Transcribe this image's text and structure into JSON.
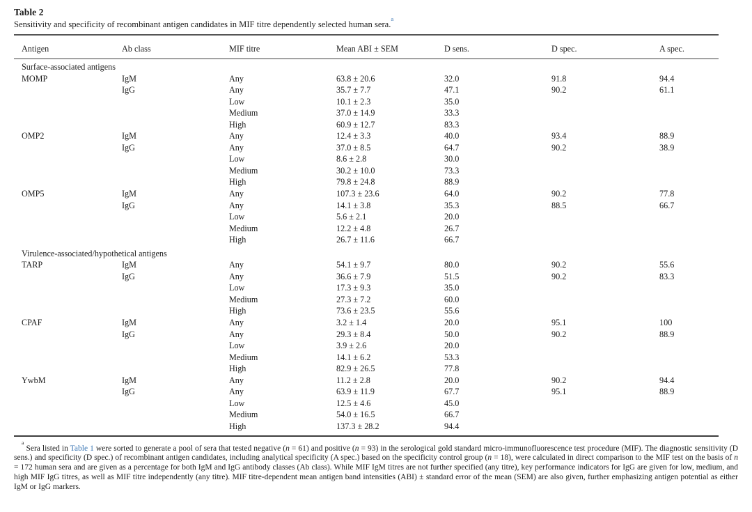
{
  "page": {
    "background": "#ffffff",
    "text_color": "#1c1c1c",
    "link_color": "#3c77b5"
  },
  "title": "Table 2",
  "caption": {
    "text": "Sensitivity and specificity of recombinant antigen candidates in MIF titre dependently selected human sera.",
    "footnote_marker": "a"
  },
  "table": {
    "columns": [
      "Antigen",
      "Ab class",
      "MIF titre",
      "Mean ABI ± SEM",
      "D sens.",
      "D spec.",
      "A spec."
    ],
    "rows": [
      {
        "type": "section",
        "label": "Surface-associated antigens"
      },
      {
        "type": "data",
        "cells": [
          "MOMP",
          "IgM",
          "Any",
          "63.8 ± 20.6",
          "32.0",
          "91.8",
          "94.4"
        ]
      },
      {
        "type": "data",
        "cells": [
          "",
          "IgG",
          "Any",
          "35.7 ± 7.7",
          "47.1",
          "90.2",
          "61.1"
        ]
      },
      {
        "type": "data",
        "cells": [
          "",
          "",
          "Low",
          "10.1 ± 2.3",
          "35.0",
          "",
          ""
        ]
      },
      {
        "type": "data",
        "cells": [
          "",
          "",
          "Medium",
          "37.0 ± 14.9",
          "33.3",
          "",
          ""
        ]
      },
      {
        "type": "data",
        "cells": [
          "",
          "",
          "High",
          "60.9 ± 12.7",
          "83.3",
          "",
          ""
        ]
      },
      {
        "type": "data",
        "cells": [
          "OMP2",
          "IgM",
          "Any",
          "12.4 ± 3.3",
          "40.0",
          "93.4",
          "88.9"
        ]
      },
      {
        "type": "data",
        "cells": [
          "",
          "IgG",
          "Any",
          "37.0 ± 8.5",
          "64.7",
          "90.2",
          "38.9"
        ]
      },
      {
        "type": "data",
        "cells": [
          "",
          "",
          "Low",
          "8.6 ± 2.8",
          "30.0",
          "",
          ""
        ]
      },
      {
        "type": "data",
        "cells": [
          "",
          "",
          "Medium",
          "30.2 ± 10.0",
          "73.3",
          "",
          ""
        ]
      },
      {
        "type": "data",
        "cells": [
          "",
          "",
          "High",
          "79.8 ± 24.8",
          "88.9",
          "",
          ""
        ]
      },
      {
        "type": "data",
        "cells": [
          "OMP5",
          "IgM",
          "Any",
          "107.3 ± 23.6",
          "64.0",
          "90.2",
          "77.8"
        ]
      },
      {
        "type": "data",
        "cells": [
          "",
          "IgG",
          "Any",
          "14.1 ± 3.8",
          "35.3",
          "88.5",
          "66.7"
        ]
      },
      {
        "type": "data",
        "cells": [
          "",
          "",
          "Low",
          "5.6 ± 2.1",
          "20.0",
          "",
          ""
        ]
      },
      {
        "type": "data",
        "cells": [
          "",
          "",
          "Medium",
          "12.2 ± 4.8",
          "26.7",
          "",
          ""
        ]
      },
      {
        "type": "data",
        "cells": [
          "",
          "",
          "High",
          "26.7 ± 11.6",
          "66.7",
          "",
          ""
        ]
      },
      {
        "type": "section",
        "label": "Virulence-associated/hypothetical antigens"
      },
      {
        "type": "data",
        "cells": [
          "TARP",
          "IgM",
          "Any",
          "54.1 ± 9.7",
          "80.0",
          "90.2",
          "55.6"
        ]
      },
      {
        "type": "data",
        "cells": [
          "",
          "IgG",
          "Any",
          "36.6 ± 7.9",
          "51.5",
          "90.2",
          "83.3"
        ]
      },
      {
        "type": "data",
        "cells": [
          "",
          "",
          "Low",
          "17.3 ± 9.3",
          "35.0",
          "",
          ""
        ]
      },
      {
        "type": "data",
        "cells": [
          "",
          "",
          "Medium",
          "27.3 ± 7.2",
          "60.0",
          "",
          ""
        ]
      },
      {
        "type": "data",
        "cells": [
          "",
          "",
          "High",
          "73.6 ± 23.5",
          "55.6",
          "",
          ""
        ]
      },
      {
        "type": "data",
        "cells": [
          "CPAF",
          "IgM",
          "Any",
          "3.2 ± 1.4",
          "20.0",
          "95.1",
          "100"
        ]
      },
      {
        "type": "data",
        "cells": [
          "",
          "IgG",
          "Any",
          "29.3 ± 8.4",
          "50.0",
          "90.2",
          "88.9"
        ]
      },
      {
        "type": "data",
        "cells": [
          "",
          "",
          "Low",
          "3.9 ± 2.6",
          "20.0",
          "",
          ""
        ]
      },
      {
        "type": "data",
        "cells": [
          "",
          "",
          "Medium",
          "14.1 ± 6.2",
          "53.3",
          "",
          ""
        ]
      },
      {
        "type": "data",
        "cells": [
          "",
          "",
          "High",
          "82.9 ± 26.5",
          "77.8",
          "",
          ""
        ]
      },
      {
        "type": "data",
        "cells": [
          "YwbM",
          "IgM",
          "Any",
          "11.2 ± 2.8",
          "20.0",
          "90.2",
          "94.4"
        ]
      },
      {
        "type": "data",
        "cells": [
          "",
          "IgG",
          "Any",
          "63.9 ± 11.9",
          "67.7",
          "95.1",
          "88.9"
        ]
      },
      {
        "type": "data",
        "cells": [
          "",
          "",
          "Low",
          "12.5 ± 4.6",
          "45.0",
          "",
          ""
        ]
      },
      {
        "type": "data",
        "cells": [
          "",
          "",
          "Medium",
          "54.0 ± 16.5",
          "66.7",
          "",
          ""
        ]
      },
      {
        "type": "data",
        "cells": [
          "",
          "",
          "High",
          "137.3 ± 28.2",
          "94.4",
          "",
          ""
        ]
      }
    ]
  },
  "footnote": {
    "segments": [
      {
        "t": "a",
        "s": "sup"
      },
      {
        "t": "Sera listed in ",
        "s": "n"
      },
      {
        "t": "Table 1",
        "s": "link"
      },
      {
        "t": " were sorted to generate a pool of sera that tested negative (",
        "s": "n"
      },
      {
        "t": "n",
        "s": "i"
      },
      {
        "t": " = 61) and positive (",
        "s": "n"
      },
      {
        "t": "n",
        "s": "i"
      },
      {
        "t": " = 93) in the serological gold standard micro-immunofluorescence test procedure (MIF). The diagnostic sensitivity (D sens.) and specificity (D spec.) of recombinant antigen candidates, including analytical specificity (A spec.) based on the specificity control group (",
        "s": "n"
      },
      {
        "t": "n",
        "s": "i"
      },
      {
        "t": " = 18), were calculated in direct comparison to the MIF test on the basis of ",
        "s": "n"
      },
      {
        "t": "n",
        "s": "i"
      },
      {
        "t": " = 172 human sera and are given as a percentage for both IgM and IgG antibody classes (Ab class). While MIF IgM titres are not further specified (any titre), key performance indicators for IgG are given for low, medium, and high MIF IgG titres, as well as MIF titre independently (any titre). MIF titre-dependent mean antigen band intensities (ABI) ± standard error of the mean (SEM) are also given, further emphasizing antigen potential as either IgM or IgG markers.",
        "s": "n"
      }
    ]
  }
}
